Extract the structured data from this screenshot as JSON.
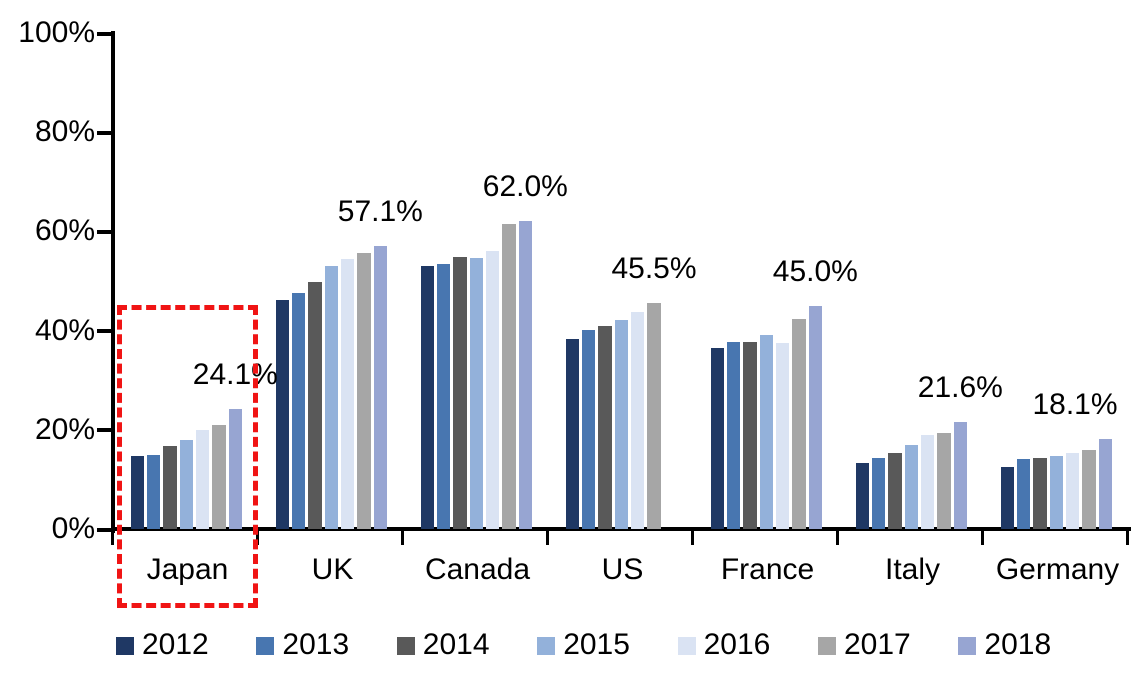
{
  "chart_data": {
    "type": "bar",
    "title": "",
    "categories": [
      "Japan",
      "UK",
      "Canada",
      "US",
      "France",
      "Italy",
      "Germany"
    ],
    "series": [
      {
        "name": "2012",
        "color": "#1f3864",
        "values": [
          14.8,
          46.2,
          53.0,
          38.3,
          36.5,
          13.4,
          12.6
        ]
      },
      {
        "name": "2013",
        "color": "#4876b0",
        "values": [
          15.0,
          47.6,
          53.4,
          40.2,
          37.7,
          14.3,
          14.1
        ]
      },
      {
        "name": "2014",
        "color": "#595959",
        "values": [
          16.7,
          49.8,
          54.8,
          41.0,
          37.7,
          15.4,
          14.4
        ]
      },
      {
        "name": "2015",
        "color": "#93b1da",
        "values": [
          18.0,
          53.0,
          54.6,
          42.1,
          39.2,
          16.9,
          14.8
        ]
      },
      {
        "name": "2016",
        "color": "#dae3f3",
        "values": [
          20.0,
          54.5,
          56.0,
          43.7,
          37.4,
          19.0,
          15.4
        ]
      },
      {
        "name": "2017",
        "color": "#a6a6a6",
        "values": [
          21.0,
          55.7,
          61.5,
          45.5,
          42.3,
          19.3,
          15.9
        ]
      },
      {
        "name": "2018",
        "color": "#97a5d2",
        "values": [
          24.1,
          57.1,
          62.0,
          null,
          45.0,
          21.6,
          18.1
        ]
      }
    ],
    "data_labels": [
      "24.1%",
      "57.1%",
      "62.0%",
      "45.5%",
      "45.0%",
      "21.6%",
      "18.1%"
    ],
    "y_axis": {
      "min": 0,
      "max": 100,
      "tick_step": 20,
      "tick_labels": [
        "0%",
        "20%",
        "40%",
        "60%",
        "80%",
        "100%"
      ]
    },
    "grid": false,
    "legend_position": "bottom",
    "legend_labels": [
      "2012",
      "2013",
      "2014",
      "2015",
      "2016",
      "2017",
      "2018"
    ],
    "highlight": {
      "category": "Japan",
      "style": "red-dashed-box",
      "color": "#f01414"
    }
  },
  "colors": {
    "axis": "#000000",
    "text": "#000000",
    "background": "#ffffff",
    "highlight": "#f01414"
  }
}
